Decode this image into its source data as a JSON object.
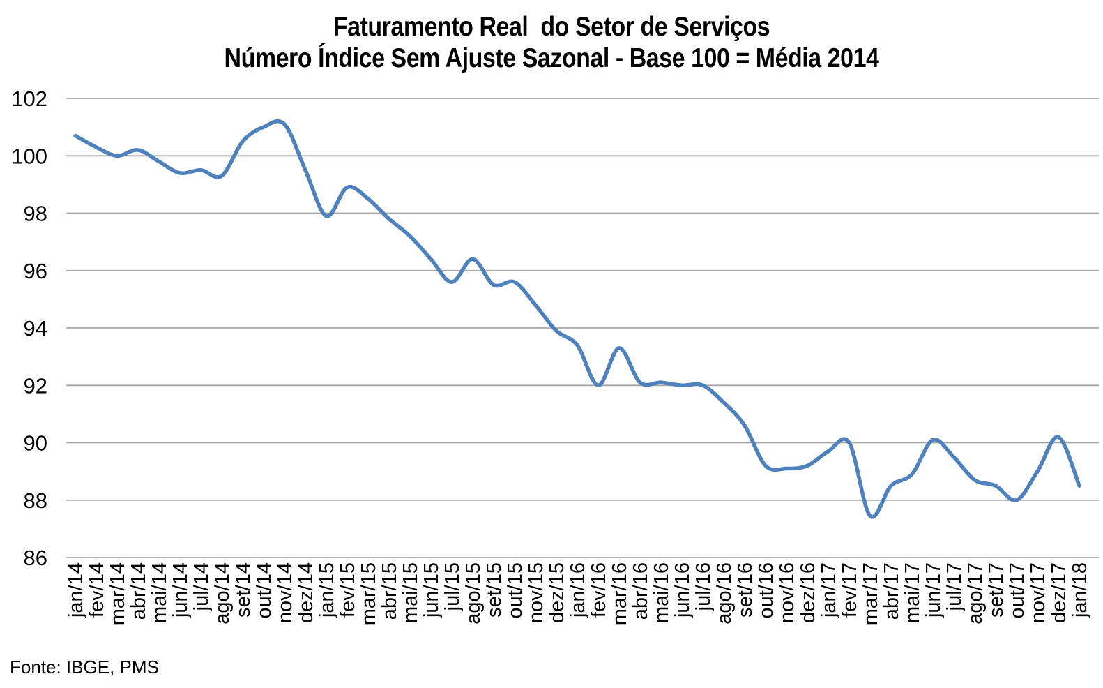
{
  "page": {
    "background": "#FFFFFF"
  },
  "chart_data": {
    "type": "line",
    "title": "Faturamento Real  do Setor de Serviços",
    "subtitle": "Número Índice Sem Ajuste Sazonal - Base 100 = Média 2014",
    "source": "Fonte: IBGE, PMS",
    "categories": [
      "jan/14",
      "fev/14",
      "mar/14",
      "abr/14",
      "mai/14",
      "jun/14",
      "jul/14",
      "ago/14",
      "set/14",
      "out/14",
      "nov/14",
      "dez/14",
      "jan/15",
      "fev/15",
      "mar/15",
      "abr/15",
      "mai/15",
      "jun/15",
      "jul/15",
      "ago/15",
      "set/15",
      "out/15",
      "nov/15",
      "dez/15",
      "jan/16",
      "fev/16",
      "mar/16",
      "abr/16",
      "mai/16",
      "jun/16",
      "jul/16",
      "ago/16",
      "set/16",
      "out/16",
      "nov/16",
      "dez/16",
      "jan/17",
      "fev/17",
      "mar/17",
      "abr/17",
      "mai/17",
      "jun/17",
      "jul/17",
      "ago/17",
      "set/17",
      "out/17",
      "nov/17",
      "dez/17",
      "jan/18"
    ],
    "values": [
      100.7,
      100.3,
      100.0,
      100.2,
      99.8,
      99.4,
      99.5,
      99.3,
      100.5,
      101.0,
      101.1,
      99.5,
      97.9,
      98.9,
      98.5,
      97.8,
      97.2,
      96.4,
      95.6,
      96.4,
      95.5,
      95.6,
      94.8,
      93.9,
      93.4,
      92.0,
      93.3,
      92.1,
      92.1,
      92.0,
      92.0,
      91.4,
      90.6,
      89.2,
      89.1,
      89.2,
      89.7,
      90.0,
      87.45,
      88.5,
      88.9,
      90.1,
      89.5,
      88.7,
      88.5,
      88.0,
      89.0,
      90.2,
      88.5
    ],
    "ylim": [
      86,
      102
    ],
    "ytick_step": 2,
    "yticks": [
      102,
      100,
      98,
      96,
      94,
      92,
      90,
      88,
      86
    ],
    "grid": true,
    "legend": "none",
    "line_smooth": true,
    "colors": {
      "line": "#4F81BD",
      "gridline": "#A6A6A6",
      "text": "#000000",
      "background": "#FFFFFF"
    }
  }
}
